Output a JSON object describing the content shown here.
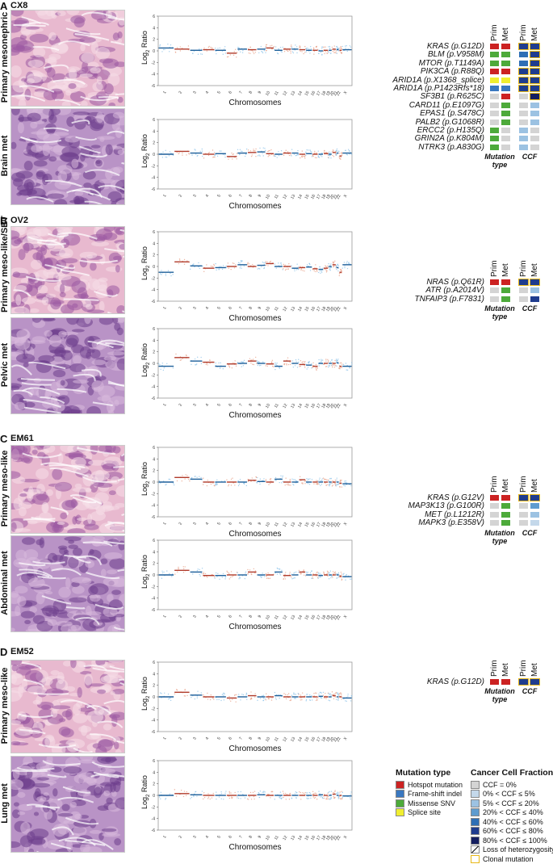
{
  "colors": {
    "hotspot": "#cc2222",
    "frameshift": "#3a78c0",
    "missense": "#4daa3a",
    "splice": "#f0ee30",
    "ccf0": "#d4d4d4",
    "ccf1": "#c4d8ea",
    "ccf2": "#9cc2e2",
    "ccf3": "#5e9ccf",
    "ccf4": "#2e6fb5",
    "ccf5": "#1f3c8e",
    "ccf6": "#141e60",
    "ccf7": "#0a0f3a",
    "clonal": "#e8b818"
  },
  "common": {
    "prim": "Prim",
    "met": "Met",
    "mutation_type": "Mutation type",
    "ccf": "CCF",
    "chromosomes": "Chromosomes",
    "log2": "Log",
    "log2_sub": "2",
    "log2_tail": " Ratio"
  },
  "panels": [
    {
      "letter": "A",
      "sample": "CX8",
      "images": [
        {
          "label": "Primary mesonephric"
        },
        {
          "label": "Brain met"
        }
      ],
      "mutations": [
        {
          "gene": "KRAS (p.G12D)",
          "prim_type": "hotspot",
          "met_type": "hotspot",
          "prim_ccf": 5,
          "met_ccf": 5,
          "prim_clonal": true,
          "met_clonal": true
        },
        {
          "gene": "BLM (p.V958M)",
          "prim_type": "missense",
          "met_type": "missense",
          "prim_ccf": 4,
          "met_ccf": 5,
          "prim_clonal": false,
          "met_clonal": true
        },
        {
          "gene": "MTOR (p.T1149A)",
          "prim_type": "missense",
          "met_type": "missense",
          "prim_ccf": 4,
          "met_ccf": 5,
          "prim_clonal": false,
          "met_clonal": true
        },
        {
          "gene": "PIK3CA (p.R88Q)",
          "prim_type": "hotspot",
          "met_type": "hotspot",
          "prim_ccf": 5,
          "met_ccf": 5,
          "prim_clonal": true,
          "met_clonal": true
        },
        {
          "gene": "ARID1A (p.X1368_splice)",
          "prim_type": "splice",
          "met_type": "splice",
          "prim_ccf": 5,
          "met_ccf": 5,
          "prim_clonal": true,
          "met_clonal": true
        },
        {
          "gene": "ARID1A (p.P1423Rfs*18)",
          "prim_type": "frameshift",
          "met_type": "frameshift",
          "prim_ccf": 5,
          "met_ccf": 5,
          "prim_clonal": true,
          "met_clonal": true
        },
        {
          "gene": "SF3B1 (p.R625C)",
          "prim_type": "none",
          "met_type": "hotspot",
          "prim_ccf": 0,
          "met_ccf": 6,
          "prim_clonal": false,
          "met_clonal": true
        },
        {
          "gene": "CARD11 (p.E1097G)",
          "prim_type": "none",
          "met_type": "missense",
          "prim_ccf": 0,
          "met_ccf": 2,
          "prim_clonal": false,
          "met_clonal": false
        },
        {
          "gene": "EPAS1 (p.S478C)",
          "prim_type": "none",
          "met_type": "missense",
          "prim_ccf": 0,
          "met_ccf": 2,
          "prim_clonal": false,
          "met_clonal": false
        },
        {
          "gene": "PALB2 (p.G1068R)",
          "prim_type": "none",
          "met_type": "missense",
          "prim_ccf": 0,
          "met_ccf": 2,
          "prim_clonal": false,
          "met_clonal": false
        },
        {
          "gene": "ERCC2 (p.H135Q)",
          "prim_type": "missense",
          "met_type": "none",
          "prim_ccf": 2,
          "met_ccf": 0,
          "prim_clonal": false,
          "met_clonal": false
        },
        {
          "gene": "GRIN2A (p.K804M)",
          "prim_type": "missense",
          "met_type": "none",
          "prim_ccf": 2,
          "met_ccf": 0,
          "prim_clonal": false,
          "met_clonal": false
        },
        {
          "gene": "NTRK3 (p.A830G)",
          "prim_type": "missense",
          "met_type": "none",
          "prim_ccf": 2,
          "met_ccf": 0,
          "prim_clonal": false,
          "met_clonal": false
        }
      ]
    },
    {
      "letter": "B",
      "sample": "OV2",
      "images": [
        {
          "label": "Primary meso-like/SBT"
        },
        {
          "label": "Pelvic met"
        }
      ],
      "mutations": [
        {
          "gene": "NRAS (p.Q61R)",
          "prim_type": "hotspot",
          "met_type": "hotspot",
          "prim_ccf": 5,
          "met_ccf": 5,
          "prim_clonal": true,
          "met_clonal": true
        },
        {
          "gene": "ATR (p.A2014V)",
          "prim_type": "none",
          "met_type": "missense",
          "prim_ccf": 0,
          "met_ccf": 2,
          "prim_clonal": false,
          "met_clonal": false
        },
        {
          "gene": "TNFAIP3 (p.F7831)",
          "prim_type": "none",
          "met_type": "missense",
          "prim_ccf": 0,
          "met_ccf": 5,
          "prim_clonal": false,
          "met_clonal": false
        }
      ]
    },
    {
      "letter": "C",
      "sample": "EM61",
      "images": [
        {
          "label": "Primary meso-like"
        },
        {
          "label": "Abdominal met"
        }
      ],
      "mutations": [
        {
          "gene": "KRAS (p.G12V)",
          "prim_type": "hotspot",
          "met_type": "hotspot",
          "prim_ccf": 5,
          "met_ccf": 5,
          "prim_clonal": true,
          "met_clonal": true
        },
        {
          "gene": "MAP3K13 (p.G100R)",
          "prim_type": "none",
          "met_type": "missense",
          "prim_ccf": 0,
          "met_ccf": 3,
          "prim_clonal": false,
          "met_clonal": false
        },
        {
          "gene": "MET (p.L1212R)",
          "prim_type": "none",
          "met_type": "missense",
          "prim_ccf": 0,
          "met_ccf": 2,
          "prim_clonal": false,
          "met_clonal": false
        },
        {
          "gene": "MAPK3 (p.E358V)",
          "prim_type": "none",
          "met_type": "missense",
          "prim_ccf": 0,
          "met_ccf": 1,
          "prim_clonal": false,
          "met_clonal": false
        }
      ]
    },
    {
      "letter": "D",
      "sample": "EM52",
      "images": [
        {
          "label": "Primary meso-like"
        },
        {
          "label": "Lung met"
        }
      ],
      "mutations": [
        {
          "gene": "KRAS (p.G12D)",
          "prim_type": "hotspot",
          "met_type": "hotspot",
          "prim_ccf": 5,
          "met_ccf": 5,
          "prim_clonal": true,
          "met_clonal": true
        }
      ]
    }
  ],
  "chart_data": [
    {
      "type": "scatter",
      "panel": "A",
      "sample": "Primary mesonephric",
      "xlabel": "Chromosomes",
      "ylabel": "Log2 Ratio",
      "ylim": [
        -6,
        6
      ],
      "yticks": [
        -6,
        -4,
        -2,
        0,
        2,
        4,
        6
      ],
      "categories": [
        "1",
        "2",
        "3",
        "4",
        "5",
        "6",
        "7",
        "8",
        "9",
        "10",
        "11",
        "12",
        "13",
        "14",
        "15",
        "16",
        "17",
        "18",
        "19",
        "20",
        "21",
        "22",
        "X"
      ],
      "segments": [
        0.5,
        0.3,
        0.1,
        0.2,
        0.1,
        -0.4,
        0.3,
        0.2,
        0.3,
        0.5,
        0.1,
        0.3,
        0.3,
        0.2,
        0.1,
        0.1,
        0.0,
        0.1,
        0.1,
        0.3,
        0.2,
        0.1,
        0.2
      ]
    },
    {
      "type": "scatter",
      "panel": "A",
      "sample": "Brain met",
      "xlabel": "Chromosomes",
      "ylabel": "Log2 Ratio",
      "ylim": [
        -6,
        6
      ],
      "yticks": [
        -6,
        -4,
        -2,
        0,
        2,
        4,
        6
      ],
      "categories": [
        "1",
        "2",
        "3",
        "4",
        "5",
        "6",
        "7",
        "8",
        "9",
        "10",
        "11",
        "12",
        "13",
        "14",
        "15",
        "16",
        "17",
        "18",
        "19",
        "20",
        "21",
        "22",
        "X"
      ],
      "segments": [
        0.0,
        0.5,
        0.2,
        0.0,
        0.1,
        -0.4,
        0.2,
        0.3,
        0.4,
        0.1,
        0.0,
        0.2,
        0.2,
        0.0,
        0.1,
        0.0,
        0.0,
        0.1,
        0.0,
        0.3,
        0.2,
        -0.3,
        0.2
      ]
    },
    {
      "type": "scatter",
      "panel": "B",
      "sample": "Primary meso-like/SBT",
      "xlabel": "Chromosomes",
      "ylabel": "Log2 Ratio",
      "ylim": [
        -6,
        6
      ],
      "yticks": [
        -6,
        -4,
        -2,
        0,
        2,
        4,
        6
      ],
      "categories": [
        "1",
        "2",
        "3",
        "4",
        "5",
        "6",
        "7",
        "8",
        "9",
        "10",
        "11",
        "12",
        "13",
        "14",
        "15",
        "16",
        "17",
        "18",
        "19",
        "20",
        "21",
        "22",
        "X"
      ],
      "segments": [
        -1.0,
        0.8,
        0.1,
        -0.3,
        -0.2,
        0.0,
        0.3,
        0.0,
        0.2,
        0.5,
        0.0,
        0.0,
        -0.3,
        -0.2,
        -0.1,
        -0.4,
        -0.5,
        -0.3,
        0.0,
        0.3,
        -0.2,
        -1.0,
        0.3
      ]
    },
    {
      "type": "scatter",
      "panel": "B",
      "sample": "Pelvic met",
      "xlabel": "Chromosomes",
      "ylabel": "Log2 Ratio",
      "ylim": [
        -6,
        6
      ],
      "yticks": [
        -6,
        -4,
        -2,
        0,
        2,
        4,
        6
      ],
      "categories": [
        "1",
        "2",
        "3",
        "4",
        "5",
        "6",
        "7",
        "8",
        "9",
        "10",
        "11",
        "12",
        "13",
        "14",
        "15",
        "16",
        "17",
        "18",
        "19",
        "20",
        "21",
        "22",
        "X"
      ],
      "segments": [
        -0.5,
        1.0,
        0.4,
        0.2,
        -0.5,
        -0.1,
        0.0,
        0.4,
        0.0,
        -0.1,
        -0.5,
        0.4,
        0.0,
        -0.2,
        -0.3,
        -0.5,
        0.0,
        0.0,
        0.0,
        0.0,
        0.1,
        -0.5,
        -0.5
      ]
    },
    {
      "type": "scatter",
      "panel": "C",
      "sample": "Primary meso-like",
      "xlabel": "Chromosomes",
      "ylabel": "Log2 Ratio",
      "ylim": [
        -6,
        6
      ],
      "yticks": [
        -6,
        -4,
        -2,
        0,
        2,
        4,
        6
      ],
      "categories": [
        "1",
        "2",
        "3",
        "4",
        "5",
        "6",
        "7",
        "8",
        "9",
        "10",
        "11",
        "12",
        "13",
        "14",
        "15",
        "16",
        "17",
        "18",
        "19",
        "20",
        "21",
        "22",
        "X"
      ],
      "segments": [
        0.0,
        0.8,
        0.5,
        0.0,
        0.0,
        0.0,
        0.0,
        0.3,
        0.1,
        0.0,
        0.5,
        0.0,
        0.0,
        0.4,
        0.0,
        0.0,
        0.0,
        0.0,
        0.0,
        0.0,
        0.0,
        -0.2,
        -0.3
      ]
    },
    {
      "type": "scatter",
      "panel": "C",
      "sample": "Abdominal met",
      "xlabel": "Chromosomes",
      "ylabel": "Log2 Ratio",
      "ylim": [
        -6,
        6
      ],
      "yticks": [
        -6,
        -4,
        -2,
        0,
        2,
        4,
        6
      ],
      "categories": [
        "1",
        "2",
        "3",
        "4",
        "5",
        "6",
        "7",
        "8",
        "9",
        "10",
        "11",
        "12",
        "13",
        "14",
        "15",
        "16",
        "17",
        "18",
        "19",
        "20",
        "21",
        "22",
        "X"
      ],
      "segments": [
        0.0,
        0.8,
        0.5,
        -0.1,
        -0.1,
        0.0,
        0.0,
        0.5,
        0.0,
        0.0,
        0.5,
        -0.1,
        0.0,
        0.5,
        0.0,
        0.0,
        -0.1,
        0.0,
        0.0,
        0.0,
        0.0,
        -0.2,
        -0.3
      ]
    },
    {
      "type": "scatter",
      "panel": "D",
      "sample": "Primary meso-like",
      "xlabel": "Chromosomes",
      "ylabel": "Log2 Ratio",
      "ylim": [
        -6,
        6
      ],
      "yticks": [
        -6,
        -4,
        -2,
        0,
        2,
        4,
        6
      ],
      "categories": [
        "1",
        "2",
        "3",
        "4",
        "5",
        "6",
        "7",
        "8",
        "9",
        "10",
        "11",
        "12",
        "13",
        "14",
        "15",
        "16",
        "17",
        "18",
        "19",
        "20",
        "21",
        "22",
        "X"
      ],
      "segments": [
        0.0,
        0.8,
        0.3,
        0.0,
        0.0,
        -0.2,
        0.0,
        0.2,
        0.0,
        0.0,
        0.2,
        0.0,
        0.0,
        0.0,
        0.0,
        0.0,
        0.1,
        0.0,
        0.0,
        0.2,
        0.0,
        0.0,
        -0.2
      ]
    },
    {
      "type": "scatter",
      "panel": "D",
      "sample": "Lung met",
      "xlabel": "Chromosomes",
      "ylabel": "Log2 Ratio",
      "ylim": [
        -6,
        6
      ],
      "yticks": [
        -6,
        -4,
        -2,
        0,
        2,
        4,
        6
      ],
      "categories": [
        "1",
        "2",
        "3",
        "4",
        "5",
        "6",
        "7",
        "8",
        "9",
        "10",
        "11",
        "12",
        "13",
        "14",
        "15",
        "16",
        "17",
        "18",
        "19",
        "20",
        "21",
        "22",
        "X"
      ],
      "segments": [
        0.0,
        0.3,
        0.1,
        0.0,
        0.0,
        0.0,
        0.0,
        0.0,
        0.1,
        0.0,
        0.0,
        0.0,
        0.0,
        0.0,
        0.0,
        0.0,
        0.1,
        0.0,
        0.0,
        0.2,
        0.0,
        0.0,
        -0.1
      ]
    }
  ],
  "legend": {
    "mutation": {
      "title": "Mutation type",
      "items": [
        {
          "label": "Hotspot mutation",
          "color": "#cc2222"
        },
        {
          "label": "Frame-shift indel",
          "color": "#3a78c0"
        },
        {
          "label": "Missense SNV",
          "color": "#4daa3a"
        },
        {
          "label": "Splice site",
          "color": "#f0ee30"
        }
      ]
    },
    "ccf": {
      "title": "Cancer Cell Fraction",
      "items": [
        {
          "label": "CCF = 0%",
          "color": "#d4d4d4"
        },
        {
          "label": "0% < CCF ≤  5%",
          "color": "#c4d8ea"
        },
        {
          "label": "5% < CCF ≤  20%",
          "color": "#9cc2e2"
        },
        {
          "label": "20% < CCF ≤  40%",
          "color": "#5e9ccf"
        },
        {
          "label": "40% < CCF ≤  60%",
          "color": "#2e6fb5"
        },
        {
          "label": "60% < CCF ≤  80%",
          "color": "#1f3c8e"
        },
        {
          "label": "80% < CCF ≤  100%",
          "color": "#141e60"
        },
        {
          "label": "Loss of heterozygosity",
          "color": "loh"
        },
        {
          "label": "Clonal mutation",
          "color": "clonal"
        }
      ]
    }
  }
}
